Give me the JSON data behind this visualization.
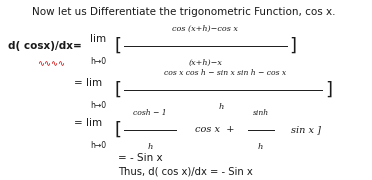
{
  "title_line": "Now let us Differentiate the trigonometric Function, cos x.",
  "line1_left": "d( cosx)/dx=",
  "line1_lim": "lim",
  "line1_h": "h→0",
  "line1_num": "cos (x+h)−cos x",
  "line1_den": "(x+h)−x",
  "line2_num": "cos x cos h − sin x sin h − cos x",
  "line2_den": "h",
  "line3_frac1_num": "cosh − 1",
  "line3_frac1_den": "h",
  "line3_mid": "cos x  +",
  "line3_frac2_num": "sinh",
  "line3_frac2_den": "h",
  "line3_end": "sin x ]",
  "line4": "= - Sin x",
  "line5": "Thus, d( cos x)/dx = - Sin x",
  "wavy_color": "#cc0000",
  "text_color": "#1a1a1a",
  "bg_color": "#ffffff"
}
